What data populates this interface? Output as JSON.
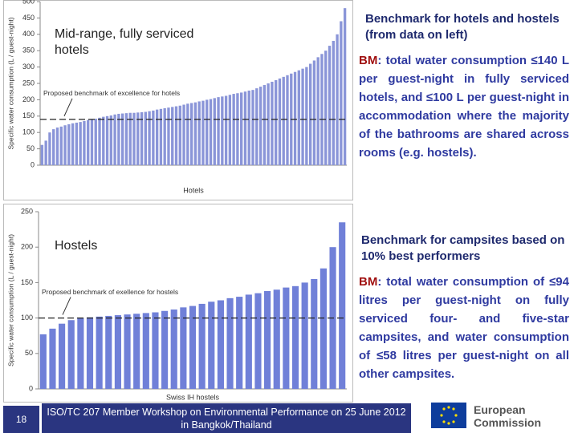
{
  "chart_data": [
    {
      "type": "bar",
      "title": "Mid-range, fully serviced hotels",
      "y_label": "Specific water consumption (L / guest-night)",
      "x_label": "Hotels",
      "values": [
        62,
        75,
        100,
        110,
        115,
        118,
        122,
        125,
        128,
        130,
        132,
        135,
        138,
        140,
        142,
        145,
        148,
        150,
        152,
        155,
        157,
        158,
        159,
        160,
        160,
        161,
        162,
        163,
        165,
        167,
        170,
        172,
        174,
        176,
        178,
        180,
        182,
        185,
        188,
        190,
        192,
        195,
        197,
        200,
        202,
        205,
        208,
        210,
        212,
        215,
        218,
        220,
        222,
        225,
        228,
        230,
        235,
        240,
        245,
        250,
        255,
        260,
        265,
        270,
        275,
        280,
        285,
        290,
        295,
        300,
        310,
        320,
        330,
        340,
        350,
        365,
        380,
        400,
        440,
        480
      ],
      "color": "#8a95d8",
      "ylim": [
        0,
        500
      ],
      "yticks": [
        0,
        50,
        100,
        150,
        200,
        250,
        300,
        350,
        400,
        450,
        500
      ],
      "benchmark": {
        "value": 140,
        "label": "Proposed benchmark of excellence for hotels"
      }
    },
    {
      "type": "bar",
      "title": "Hostels",
      "y_label": "Specific water consumption (L / guest-night)",
      "x_label": "Swiss IH hostels",
      "values": [
        77,
        85,
        92,
        97,
        100,
        101,
        102,
        103,
        104,
        105,
        106,
        107,
        108,
        110,
        112,
        115,
        117,
        120,
        123,
        125,
        128,
        130,
        133,
        135,
        138,
        140,
        143,
        145,
        150,
        155,
        170,
        200,
        235
      ],
      "color": "#7080d8",
      "ylim": [
        0,
        250
      ],
      "yticks": [
        0,
        50,
        100,
        150,
        200,
        250
      ],
      "benchmark": {
        "value": 100,
        "label": "Proposed benchmark of exellence for hostels"
      }
    }
  ],
  "hotels_heading": "Benchmark for hotels and hostels (from data on left)",
  "hotels_bm_label": "BM",
  "hotels_bm_text": ": total water consumption ≤140 L per guest-night in fully serviced hotels, and ≤100 L per guest-night in accommodation where the majority of the bathrooms are shared across rooms (e.g. hostels).",
  "campsites_heading": "Benchmark for campsites based on 10% best performers",
  "campsites_bm_label": "BM",
  "campsites_bm_text": ": total water consumption of ≤94 litres per guest-night on fully serviced four- and five-star campsites, and water consumption of ≤58 litres per guest-night on all other campsites.",
  "slide_number": "18",
  "footer": "ISO/TC 207 Member Workshop on Environmental Performance on 25 June 2012 in Bangkok/Thailand",
  "logo_text": "European Commission"
}
